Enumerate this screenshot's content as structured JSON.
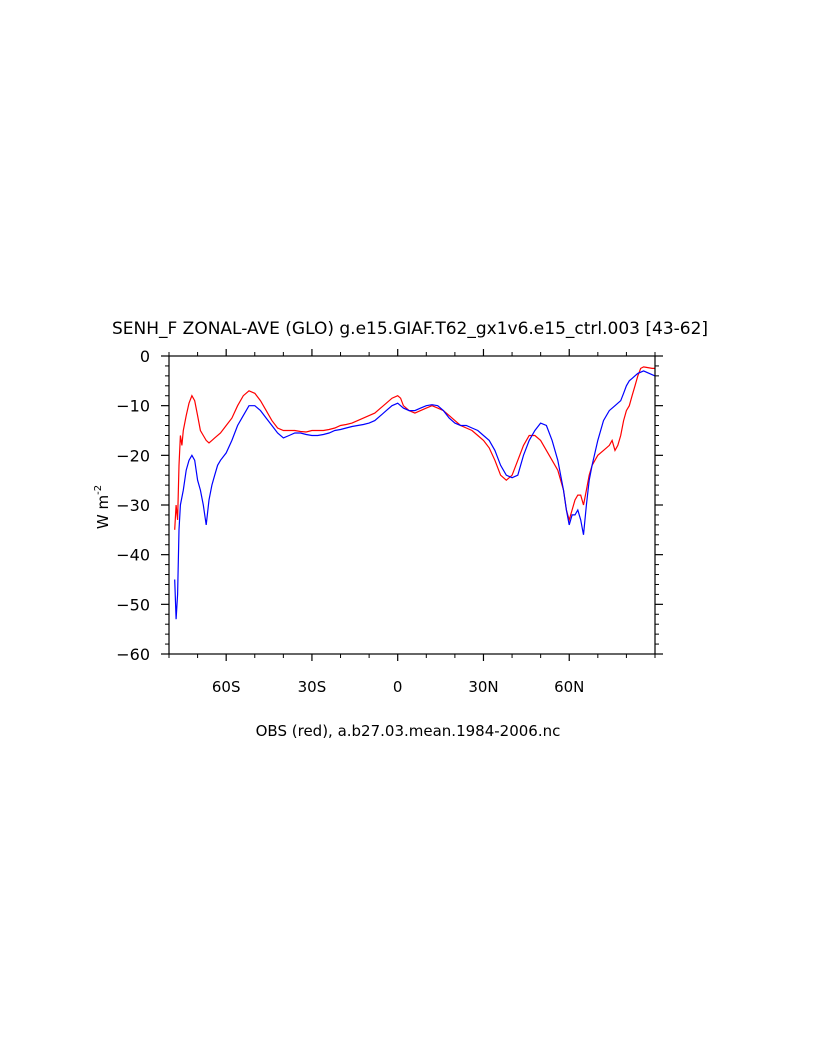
{
  "chart_data": {
    "type": "line",
    "title": "SENH_F ZONAL-AVE (GLO) g.e15.GIAF.T62_gx1v6.e15_ctrl.003 [43-62]",
    "xlabel": "OBS (red), a.b27.03.mean.1984-2006.nc",
    "ylabel": "W m",
    "ylabel_superscript": "-2",
    "xlim": [
      -80,
      90
    ],
    "ylim": [
      -60,
      0
    ],
    "x_ticks": [
      {
        "value": -60,
        "label": "60S"
      },
      {
        "value": -30,
        "label": "30S"
      },
      {
        "value": 0,
        "label": "0"
      },
      {
        "value": 30,
        "label": "30N"
      },
      {
        "value": 60,
        "label": "60N"
      }
    ],
    "y_ticks": [
      {
        "value": 0,
        "label": "0"
      },
      {
        "value": -10,
        "label": "−10"
      },
      {
        "value": -20,
        "label": "−20"
      },
      {
        "value": -30,
        "label": "−30"
      },
      {
        "value": -40,
        "label": "−40"
      },
      {
        "value": -50,
        "label": "−50"
      },
      {
        "value": -60,
        "label": "−60"
      }
    ],
    "grid": false,
    "series": [
      {
        "color": "#ff0000",
        "points": [
          [
            -78,
            -35
          ],
          [
            -77.5,
            -30
          ],
          [
            -77,
            -33
          ],
          [
            -76.5,
            -22
          ],
          [
            -76,
            -16
          ],
          [
            -75.5,
            -18
          ],
          [
            -75,
            -15
          ],
          [
            -74,
            -12
          ],
          [
            -73,
            -9.5
          ],
          [
            -72,
            -8
          ],
          [
            -71,
            -9
          ],
          [
            -70,
            -12
          ],
          [
            -69,
            -15
          ],
          [
            -68,
            -16
          ],
          [
            -67,
            -17
          ],
          [
            -66,
            -17.5
          ],
          [
            -65,
            -17
          ],
          [
            -64,
            -16.5
          ],
          [
            -62,
            -15.5
          ],
          [
            -60,
            -14
          ],
          [
            -58,
            -12.5
          ],
          [
            -56,
            -10
          ],
          [
            -54,
            -8
          ],
          [
            -52,
            -7
          ],
          [
            -50,
            -7.5
          ],
          [
            -48,
            -9
          ],
          [
            -46,
            -11
          ],
          [
            -44,
            -13
          ],
          [
            -42,
            -14.5
          ],
          [
            -40,
            -15
          ],
          [
            -38,
            -15
          ],
          [
            -36,
            -15
          ],
          [
            -34,
            -15.2
          ],
          [
            -32,
            -15.3
          ],
          [
            -30,
            -15
          ],
          [
            -28,
            -15
          ],
          [
            -26,
            -15
          ],
          [
            -24,
            -14.8
          ],
          [
            -22,
            -14.5
          ],
          [
            -20,
            -14
          ],
          [
            -18,
            -13.8
          ],
          [
            -16,
            -13.5
          ],
          [
            -14,
            -13
          ],
          [
            -12,
            -12.5
          ],
          [
            -10,
            -12
          ],
          [
            -8,
            -11.5
          ],
          [
            -6,
            -10.5
          ],
          [
            -4,
            -9.5
          ],
          [
            -2,
            -8.5
          ],
          [
            0,
            -8
          ],
          [
            1,
            -8.5
          ],
          [
            2,
            -10
          ],
          [
            4,
            -11
          ],
          [
            6,
            -11.5
          ],
          [
            8,
            -11
          ],
          [
            10,
            -10.5
          ],
          [
            12,
            -10
          ],
          [
            14,
            -10.5
          ],
          [
            16,
            -11
          ],
          [
            18,
            -12
          ],
          [
            20,
            -13
          ],
          [
            22,
            -14
          ],
          [
            24,
            -14.5
          ],
          [
            26,
            -15
          ],
          [
            28,
            -16
          ],
          [
            30,
            -17
          ],
          [
            32,
            -18.5
          ],
          [
            34,
            -21
          ],
          [
            36,
            -24
          ],
          [
            38,
            -25
          ],
          [
            40,
            -24
          ],
          [
            42,
            -21
          ],
          [
            44,
            -18
          ],
          [
            46,
            -16
          ],
          [
            48,
            -16
          ],
          [
            50,
            -17
          ],
          [
            52,
            -19
          ],
          [
            54,
            -21
          ],
          [
            56,
            -23
          ],
          [
            58,
            -27
          ],
          [
            59,
            -31
          ],
          [
            60,
            -33
          ],
          [
            61,
            -31
          ],
          [
            62,
            -29
          ],
          [
            63,
            -28
          ],
          [
            64,
            -28
          ],
          [
            65,
            -30
          ],
          [
            66,
            -27
          ],
          [
            67,
            -24
          ],
          [
            68,
            -22
          ],
          [
            70,
            -20
          ],
          [
            72,
            -19
          ],
          [
            74,
            -18
          ],
          [
            75,
            -17
          ],
          [
            76,
            -19
          ],
          [
            77,
            -18
          ],
          [
            78,
            -16
          ],
          [
            79,
            -13
          ],
          [
            80,
            -11
          ],
          [
            81,
            -10
          ],
          [
            82,
            -8
          ],
          [
            83,
            -6
          ],
          [
            84,
            -4
          ],
          [
            85,
            -2.5
          ],
          [
            86,
            -2.2
          ],
          [
            87,
            -2.3
          ],
          [
            88,
            -2.4
          ],
          [
            89,
            -2.5
          ],
          [
            90,
            -2.5
          ]
        ]
      },
      {
        "color": "#0000ff",
        "points": [
          [
            -78,
            -45
          ],
          [
            -77.5,
            -53
          ],
          [
            -77,
            -48
          ],
          [
            -76.5,
            -35
          ],
          [
            -76,
            -30
          ],
          [
            -75,
            -27
          ],
          [
            -74,
            -23
          ],
          [
            -73,
            -21
          ],
          [
            -72,
            -20
          ],
          [
            -71,
            -21
          ],
          [
            -70,
            -25
          ],
          [
            -69,
            -27
          ],
          [
            -68,
            -30
          ],
          [
            -67,
            -34
          ],
          [
            -66,
            -29
          ],
          [
            -65,
            -26
          ],
          [
            -64,
            -24
          ],
          [
            -63,
            -22
          ],
          [
            -62,
            -21
          ],
          [
            -60,
            -19.5
          ],
          [
            -58,
            -17
          ],
          [
            -56,
            -14
          ],
          [
            -54,
            -12
          ],
          [
            -52,
            -10
          ],
          [
            -50,
            -10
          ],
          [
            -48,
            -11
          ],
          [
            -46,
            -12.5
          ],
          [
            -44,
            -14
          ],
          [
            -42,
            -15.5
          ],
          [
            -40,
            -16.5
          ],
          [
            -38,
            -16
          ],
          [
            -36,
            -15.5
          ],
          [
            -34,
            -15.5
          ],
          [
            -32,
            -15.8
          ],
          [
            -30,
            -16
          ],
          [
            -28,
            -16
          ],
          [
            -26,
            -15.8
          ],
          [
            -24,
            -15.5
          ],
          [
            -22,
            -15
          ],
          [
            -20,
            -14.8
          ],
          [
            -18,
            -14.5
          ],
          [
            -16,
            -14.2
          ],
          [
            -14,
            -14
          ],
          [
            -12,
            -13.8
          ],
          [
            -10,
            -13.5
          ],
          [
            -8,
            -13
          ],
          [
            -6,
            -12
          ],
          [
            -4,
            -11
          ],
          [
            -2,
            -10
          ],
          [
            0,
            -9.5
          ],
          [
            1,
            -10
          ],
          [
            2,
            -10.5
          ],
          [
            4,
            -11
          ],
          [
            6,
            -11
          ],
          [
            8,
            -10.5
          ],
          [
            10,
            -10
          ],
          [
            12,
            -9.8
          ],
          [
            14,
            -10
          ],
          [
            16,
            -11
          ],
          [
            18,
            -12.5
          ],
          [
            20,
            -13.5
          ],
          [
            22,
            -14
          ],
          [
            24,
            -14
          ],
          [
            26,
            -14.5
          ],
          [
            28,
            -15
          ],
          [
            30,
            -16
          ],
          [
            32,
            -17
          ],
          [
            34,
            -19
          ],
          [
            36,
            -22
          ],
          [
            38,
            -24
          ],
          [
            40,
            -24.5
          ],
          [
            42,
            -24
          ],
          [
            44,
            -20
          ],
          [
            46,
            -17
          ],
          [
            48,
            -15
          ],
          [
            50,
            -13.5
          ],
          [
            52,
            -14
          ],
          [
            54,
            -17
          ],
          [
            56,
            -21
          ],
          [
            58,
            -27
          ],
          [
            59,
            -31
          ],
          [
            60,
            -34
          ],
          [
            61,
            -32
          ],
          [
            62,
            -32
          ],
          [
            63,
            -31
          ],
          [
            64,
            -33
          ],
          [
            65,
            -36
          ],
          [
            66,
            -30
          ],
          [
            67,
            -25
          ],
          [
            68,
            -22
          ],
          [
            70,
            -17
          ],
          [
            72,
            -13
          ],
          [
            74,
            -11
          ],
          [
            76,
            -10
          ],
          [
            78,
            -9
          ],
          [
            79,
            -7.5
          ],
          [
            80,
            -6
          ],
          [
            81,
            -5
          ],
          [
            82,
            -4.5
          ],
          [
            84,
            -3.5
          ],
          [
            86,
            -3
          ],
          [
            88,
            -3.5
          ],
          [
            90,
            -4
          ]
        ]
      }
    ]
  }
}
